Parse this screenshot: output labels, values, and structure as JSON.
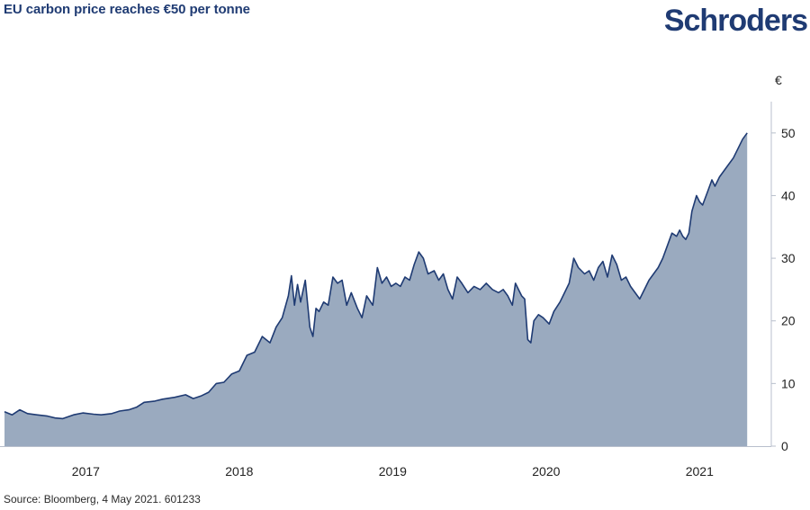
{
  "header": {
    "title": "EU carbon price reaches €50 per tonne",
    "brand": "Schroders"
  },
  "footer": {
    "source": "Source: Bloomberg, 4 May 2021. 601233"
  },
  "colors": {
    "line": "#1f3b73",
    "fill": "#9aaabf",
    "axis": "#b8bfcc"
  },
  "chart_data": {
    "type": "area",
    "title": "EU carbon price reaches €50 per tonne",
    "ylabel": "€",
    "xlabel": "",
    "ylim": [
      0,
      55
    ],
    "xlim": [
      2016.47,
      2021.35
    ],
    "y_axis_position": "right",
    "grid": false,
    "legend": "none",
    "y_ticks": [
      0,
      10,
      20,
      30,
      40,
      50
    ],
    "x_ticks": [
      {
        "label": "2017",
        "value": 2017.0
      },
      {
        "label": "2018",
        "value": 2018.0
      },
      {
        "label": "2019",
        "value": 2019.0
      },
      {
        "label": "2020",
        "value": 2020.0
      },
      {
        "label": "2021",
        "value": 2021.0
      }
    ],
    "series": [
      {
        "values": [
          [
            2016.47,
            5.5
          ],
          [
            2016.52,
            5.0
          ],
          [
            2016.57,
            5.8
          ],
          [
            2016.62,
            5.2
          ],
          [
            2016.68,
            5.0
          ],
          [
            2016.75,
            4.8
          ],
          [
            2016.8,
            4.5
          ],
          [
            2016.85,
            4.4
          ],
          [
            2016.92,
            5.0
          ],
          [
            2016.98,
            5.3
          ],
          [
            2017.05,
            5.1
          ],
          [
            2017.1,
            5.0
          ],
          [
            2017.17,
            5.2
          ],
          [
            2017.22,
            5.6
          ],
          [
            2017.28,
            5.8
          ],
          [
            2017.33,
            6.2
          ],
          [
            2017.38,
            7.0
          ],
          [
            2017.45,
            7.2
          ],
          [
            2017.5,
            7.5
          ],
          [
            2017.58,
            7.8
          ],
          [
            2017.65,
            8.2
          ],
          [
            2017.7,
            7.6
          ],
          [
            2017.75,
            8.0
          ],
          [
            2017.8,
            8.6
          ],
          [
            2017.85,
            10.0
          ],
          [
            2017.9,
            10.2
          ],
          [
            2017.95,
            11.5
          ],
          [
            2018.0,
            12.0
          ],
          [
            2018.05,
            14.5
          ],
          [
            2018.1,
            15.0
          ],
          [
            2018.15,
            17.5
          ],
          [
            2018.2,
            16.5
          ],
          [
            2018.24,
            19.0
          ],
          [
            2018.28,
            20.5
          ],
          [
            2018.32,
            24.0
          ],
          [
            2018.34,
            27.2
          ],
          [
            2018.36,
            22.5
          ],
          [
            2018.38,
            25.8
          ],
          [
            2018.4,
            23.0
          ],
          [
            2018.43,
            26.5
          ],
          [
            2018.46,
            19.0
          ],
          [
            2018.48,
            17.5
          ],
          [
            2018.5,
            22.0
          ],
          [
            2018.52,
            21.5
          ],
          [
            2018.55,
            23.0
          ],
          [
            2018.58,
            22.5
          ],
          [
            2018.61,
            27.0
          ],
          [
            2018.64,
            26.0
          ],
          [
            2018.67,
            26.5
          ],
          [
            2018.7,
            22.5
          ],
          [
            2018.73,
            24.5
          ],
          [
            2018.77,
            22.0
          ],
          [
            2018.8,
            20.5
          ],
          [
            2018.83,
            24.0
          ],
          [
            2018.87,
            22.5
          ],
          [
            2018.9,
            28.5
          ],
          [
            2018.93,
            26.0
          ],
          [
            2018.96,
            27.0
          ],
          [
            2018.99,
            25.5
          ],
          [
            2019.02,
            26.0
          ],
          [
            2019.05,
            25.5
          ],
          [
            2019.08,
            27.0
          ],
          [
            2019.11,
            26.5
          ],
          [
            2019.14,
            29.0
          ],
          [
            2019.17,
            31.0
          ],
          [
            2019.2,
            30.0
          ],
          [
            2019.23,
            27.5
          ],
          [
            2019.27,
            28.0
          ],
          [
            2019.3,
            26.5
          ],
          [
            2019.33,
            27.5
          ],
          [
            2019.36,
            25.0
          ],
          [
            2019.39,
            23.5
          ],
          [
            2019.42,
            27.0
          ],
          [
            2019.45,
            26.0
          ],
          [
            2019.49,
            24.5
          ],
          [
            2019.53,
            25.5
          ],
          [
            2019.57,
            25.0
          ],
          [
            2019.61,
            26.0
          ],
          [
            2019.65,
            25.0
          ],
          [
            2019.69,
            24.5
          ],
          [
            2019.72,
            25.0
          ],
          [
            2019.75,
            24.0
          ],
          [
            2019.78,
            22.5
          ],
          [
            2019.8,
            26.0
          ],
          [
            2019.82,
            25.0
          ],
          [
            2019.84,
            24.0
          ],
          [
            2019.86,
            23.5
          ],
          [
            2019.88,
            17.0
          ],
          [
            2019.9,
            16.5
          ],
          [
            2019.92,
            20.0
          ],
          [
            2019.95,
            21.0
          ],
          [
            2019.98,
            20.5
          ],
          [
            2020.02,
            19.5
          ],
          [
            2020.05,
            21.5
          ],
          [
            2020.09,
            23.0
          ],
          [
            2020.12,
            24.5
          ],
          [
            2020.15,
            26.0
          ],
          [
            2020.18,
            30.0
          ],
          [
            2020.21,
            28.5
          ],
          [
            2020.25,
            27.5
          ],
          [
            2020.28,
            28.0
          ],
          [
            2020.31,
            26.5
          ],
          [
            2020.34,
            28.5
          ],
          [
            2020.37,
            29.5
          ],
          [
            2020.4,
            27.0
          ],
          [
            2020.43,
            30.5
          ],
          [
            2020.46,
            29.0
          ],
          [
            2020.49,
            26.5
          ],
          [
            2020.52,
            27.0
          ],
          [
            2020.55,
            25.5
          ],
          [
            2020.58,
            24.5
          ],
          [
            2020.61,
            23.5
          ],
          [
            2020.64,
            25.0
          ],
          [
            2020.67,
            26.5
          ],
          [
            2020.7,
            27.5
          ],
          [
            2020.73,
            28.5
          ],
          [
            2020.76,
            30.0
          ],
          [
            2020.79,
            32.0
          ],
          [
            2020.82,
            34.0
          ],
          [
            2020.85,
            33.5
          ],
          [
            2020.87,
            34.5
          ],
          [
            2020.89,
            33.5
          ],
          [
            2020.91,
            33.0
          ],
          [
            2020.93,
            34.0
          ],
          [
            2020.95,
            37.5
          ],
          [
            2020.98,
            40.0
          ],
          [
            2021.0,
            39.0
          ],
          [
            2021.02,
            38.5
          ],
          [
            2021.05,
            40.5
          ],
          [
            2021.08,
            42.5
          ],
          [
            2021.1,
            41.5
          ],
          [
            2021.13,
            43.0
          ],
          [
            2021.16,
            44.0
          ],
          [
            2021.19,
            45.0
          ],
          [
            2021.22,
            46.0
          ],
          [
            2021.25,
            47.5
          ],
          [
            2021.28,
            49.0
          ],
          [
            2021.31,
            50.0
          ]
        ]
      }
    ]
  }
}
